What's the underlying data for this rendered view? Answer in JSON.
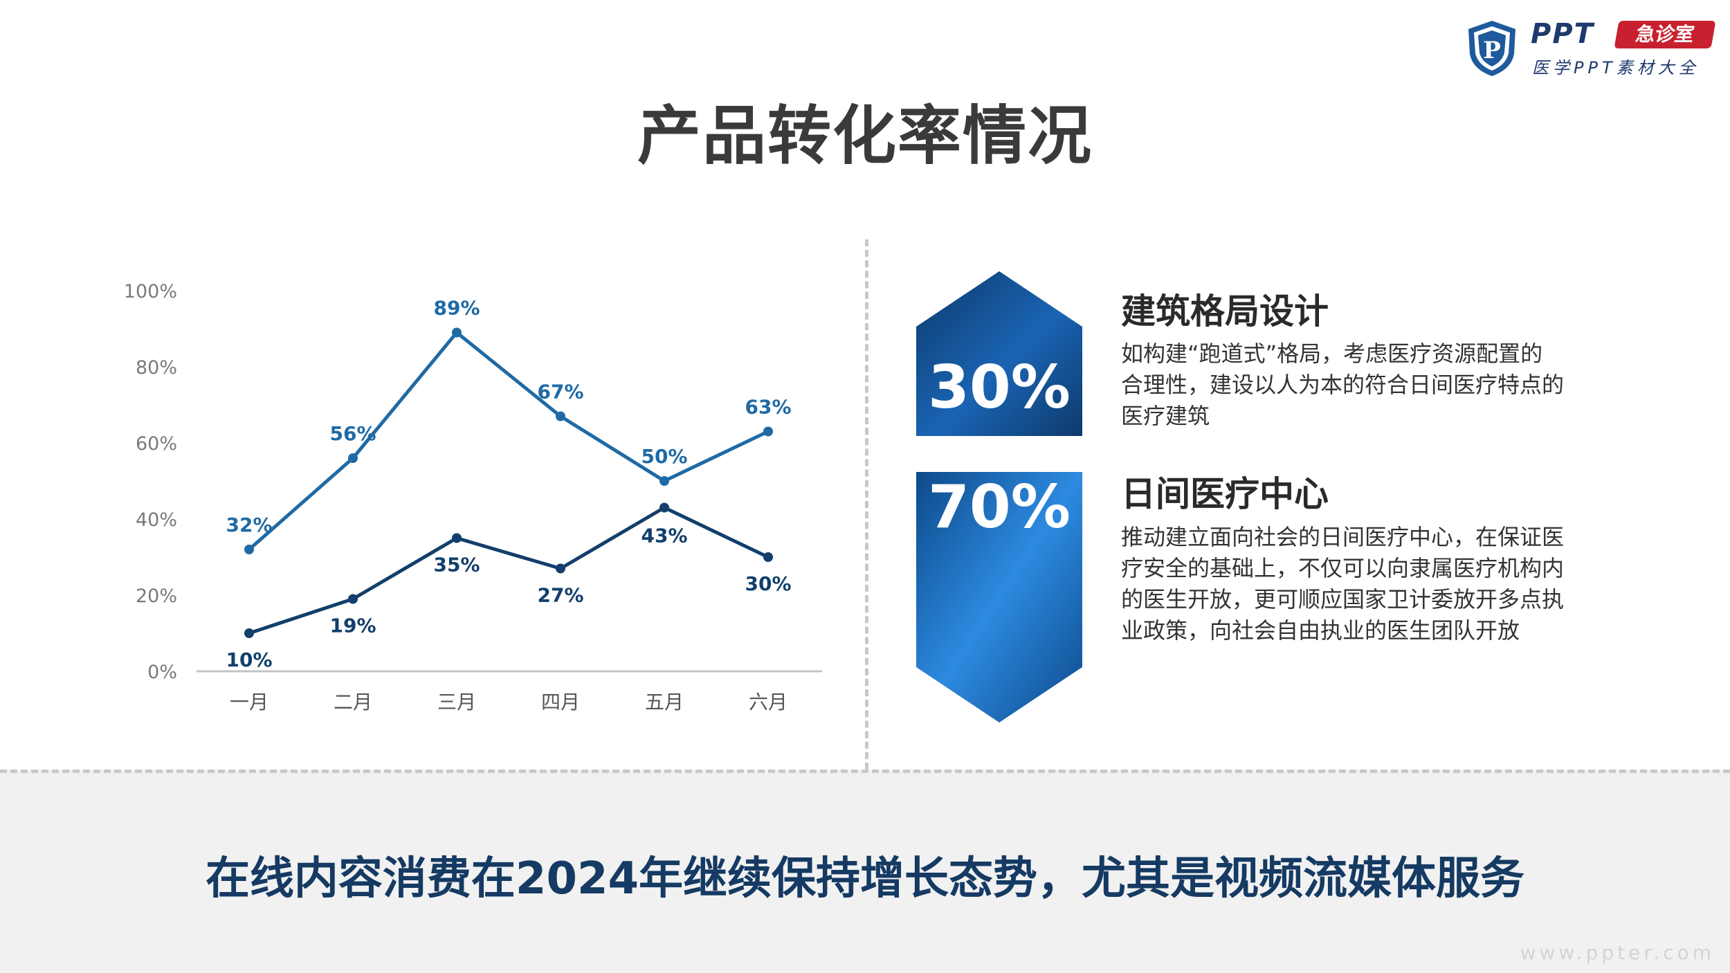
{
  "logo": {
    "shield_letter": "P",
    "ppt_text": "PPT",
    "badge_text": "急诊室",
    "subtitle": "医学PPT素材大全"
  },
  "page_title": "产品转化率情况",
  "chart_data": {
    "type": "line",
    "categories": [
      "一月",
      "二月",
      "三月",
      "四月",
      "五月",
      "六月"
    ],
    "series": [
      {
        "values": [
          32,
          56,
          89,
          67,
          50,
          63
        ],
        "labels": [
          "32%",
          "56%",
          "89%",
          "67%",
          "50%",
          "63%"
        ],
        "color": "#1f6aa5"
      },
      {
        "values": [
          10,
          19,
          35,
          27,
          43,
          30
        ],
        "labels": [
          "10%",
          "19%",
          "35%",
          "27%",
          "43%",
          "30%"
        ],
        "color": "#123f6b"
      }
    ],
    "y_ticks": [
      "0%",
      "20%",
      "40%",
      "60%",
      "80%",
      "100%"
    ],
    "ylim": [
      0,
      100
    ],
    "grid": false,
    "legend": "none"
  },
  "stats": [
    {
      "value": "30%",
      "title": "建筑格局设计",
      "desc": "如构建“跑道式”格局，考虑医疗资源配置的合理性，建设以人为本的符合日间医疗特点的医疗建筑"
    },
    {
      "value": "70%",
      "title": "日间医疗中心",
      "desc": "推动建立面向社会的日间医疗中心，在保证医疗安全的基础上，不仅可以向隶属医疗机构内的医生开放，更可顺应国家卫计委放开多点执业政策，向社会自由执业的医生团队开放"
    }
  ],
  "colors": {
    "accent_dark": "#0d3a6a",
    "accent_light": "#2d8ae0",
    "title_text": "#3a3a3a",
    "footer_text": "#153a63",
    "badge_red": "#c8202f"
  },
  "footer_text": "在线内容消费在2024年继续保持增长态势，尤其是视频流媒体服务",
  "watermark": "www.ppter.com"
}
